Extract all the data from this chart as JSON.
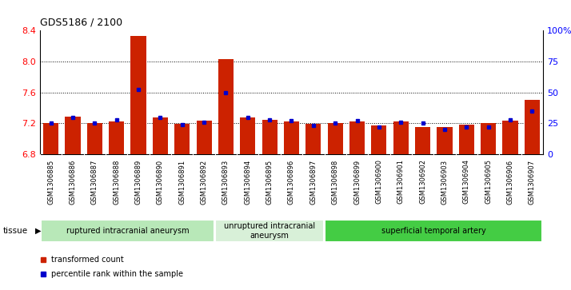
{
  "title": "GDS5186 / 2100",
  "samples": [
    "GSM1306885",
    "GSM1306886",
    "GSM1306887",
    "GSM1306888",
    "GSM1306889",
    "GSM1306890",
    "GSM1306891",
    "GSM1306892",
    "GSM1306893",
    "GSM1306894",
    "GSM1306895",
    "GSM1306896",
    "GSM1306897",
    "GSM1306898",
    "GSM1306899",
    "GSM1306900",
    "GSM1306901",
    "GSM1306902",
    "GSM1306903",
    "GSM1306904",
    "GSM1306905",
    "GSM1306906",
    "GSM1306907"
  ],
  "red_values": [
    7.2,
    7.29,
    7.2,
    7.22,
    8.33,
    7.27,
    7.19,
    7.23,
    8.03,
    7.27,
    7.24,
    7.22,
    7.19,
    7.2,
    7.22,
    7.17,
    7.22,
    7.15,
    7.15,
    7.18,
    7.2,
    7.23,
    7.5
  ],
  "blue_values": [
    25,
    30,
    25,
    28,
    52,
    30,
    24,
    26,
    50,
    30,
    28,
    27,
    23,
    25,
    27,
    22,
    26,
    25,
    20,
    22,
    22,
    28,
    35
  ],
  "ylim_left": [
    6.8,
    8.4
  ],
  "ylim_right": [
    0,
    100
  ],
  "yticks_left": [
    6.8,
    7.2,
    7.6,
    8.0,
    8.4
  ],
  "yticks_right": [
    0,
    25,
    50,
    75,
    100
  ],
  "ytick_labels_right": [
    "0",
    "25",
    "50",
    "75",
    "100%"
  ],
  "grid_yticks": [
    7.2,
    7.6,
    8.0
  ],
  "groups": [
    {
      "label": "ruptured intracranial aneurysm",
      "start": 0,
      "end": 8,
      "color": "#b8e8b8"
    },
    {
      "label": "unruptured intracranial\naneurysm",
      "start": 8,
      "end": 13,
      "color": "#d8f0d8"
    },
    {
      "label": "superficial temporal artery",
      "start": 13,
      "end": 23,
      "color": "#44cc44"
    }
  ],
  "tissue_label": "tissue",
  "legend_red_label": "transformed count",
  "legend_blue_label": "percentile rank within the sample",
  "bar_color": "#cc2200",
  "dot_color": "#0000cc",
  "bar_width": 0.7,
  "base_value": 6.8,
  "xtick_bg_color": "#cccccc",
  "plot_bg_color": "#ffffff"
}
